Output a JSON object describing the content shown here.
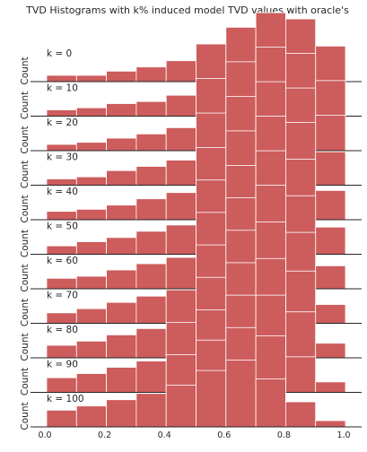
{
  "chart_data": {
    "type": "bar",
    "title": "TVD Histograms with k% induced model TVD values with oracle's",
    "ylabel": "Count",
    "xlim": [
      0.0,
      1.0
    ],
    "x_ticks": [
      "0.0",
      "0.2",
      "0.4",
      "0.6",
      "0.8",
      "1.0"
    ],
    "bin_edges": [
      0.0,
      0.1,
      0.2,
      0.3,
      0.4,
      0.5,
      0.6,
      0.7,
      0.8,
      0.9,
      1.0
    ],
    "series": [
      {
        "name": "k = 0",
        "values": [
          3,
          3,
          5,
          7,
          10,
          18,
          26,
          33,
          30,
          17
        ]
      },
      {
        "name": "k = 10",
        "values": [
          3,
          4,
          6,
          7,
          10,
          18,
          26,
          33,
          30,
          17
        ]
      },
      {
        "name": "k = 20",
        "values": [
          3,
          4,
          6,
          8,
          11,
          18,
          26,
          33,
          30,
          17
        ]
      },
      {
        "name": "k = 30",
        "values": [
          3,
          4,
          7,
          9,
          12,
          18,
          26,
          33,
          30,
          16
        ]
      },
      {
        "name": "k = 40",
        "values": [
          4,
          5,
          7,
          10,
          13,
          19,
          26,
          33,
          29,
          14
        ]
      },
      {
        "name": "k = 50",
        "values": [
          4,
          6,
          8,
          11,
          14,
          20,
          27,
          33,
          28,
          13
        ]
      },
      {
        "name": "k = 60",
        "values": [
          5,
          6,
          9,
          12,
          15,
          21,
          28,
          32,
          27,
          11
        ]
      },
      {
        "name": "k = 70",
        "values": [
          5,
          7,
          10,
          13,
          16,
          22,
          29,
          31,
          25,
          9
        ]
      },
      {
        "name": "k = 80",
        "values": [
          6,
          8,
          11,
          14,
          17,
          23,
          30,
          30,
          22,
          7
        ]
      },
      {
        "name": "k = 90",
        "values": [
          7,
          9,
          12,
          15,
          18,
          25,
          31,
          27,
          17,
          5
        ]
      },
      {
        "name": "k = 100",
        "values": [
          8,
          10,
          13,
          16,
          20,
          27,
          32,
          23,
          12,
          3
        ]
      }
    ],
    "color": "#cd5c5c",
    "grid": false
  }
}
